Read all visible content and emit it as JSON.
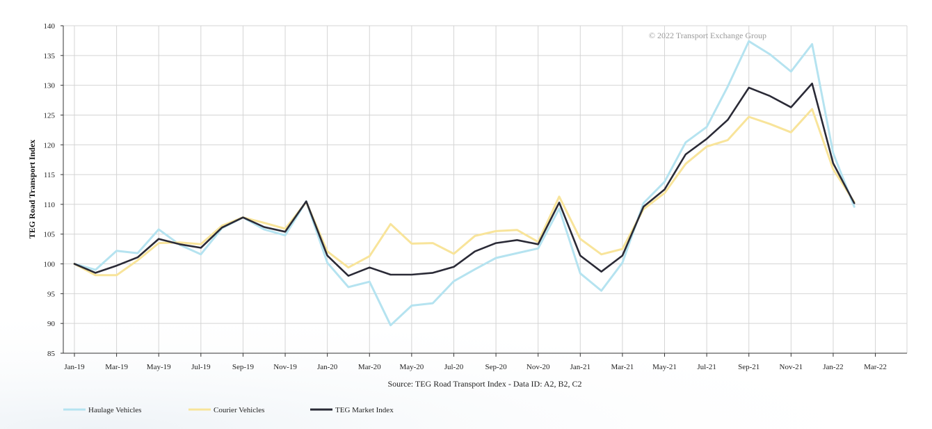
{
  "chart_data": {
    "type": "line",
    "ylabel": "TEG Road Transport Index",
    "source": "Source: TEG Road Transport Index - Data ID: A2, B2, C2",
    "watermark": "© 2022 Transport Exchange Group",
    "ylim": [
      85,
      140
    ],
    "yticks": [
      85,
      90,
      95,
      100,
      105,
      110,
      115,
      120,
      125,
      130,
      135,
      140
    ],
    "xticks": [
      "Jan-19",
      "Mar-19",
      "May-19",
      "Jul-19",
      "Sep-19",
      "Nov-19",
      "Jan-20",
      "Mar-20",
      "May-20",
      "Jul-20",
      "Sep-20",
      "Nov-20",
      "Jan-21",
      "Mar-21",
      "May-21",
      "Jul-21",
      "Sep-21",
      "Nov-21",
      "Jan-22",
      "Mar-22"
    ],
    "x": [
      "Jan-19",
      "Feb-19",
      "Mar-19",
      "Apr-19",
      "May-19",
      "Jun-19",
      "Jul-19",
      "Aug-19",
      "Sep-19",
      "Oct-19",
      "Nov-19",
      "Dec-19",
      "Jan-20",
      "Feb-20",
      "Mar-20",
      "Apr-20",
      "May-20",
      "Jun-20",
      "Jul-20",
      "Aug-20",
      "Sep-20",
      "Oct-20",
      "Nov-20",
      "Dec-20",
      "Jan-21",
      "Feb-21",
      "Mar-21",
      "Apr-21",
      "May-21",
      "Jun-21",
      "Jul-21",
      "Aug-21",
      "Sep-21",
      "Oct-21",
      "Nov-21",
      "Dec-21",
      "Jan-22",
      "Feb-22"
    ],
    "grid": true,
    "legend_position": "bottom-left",
    "series": [
      {
        "name": "Haulage Vehicles",
        "color": "#b5e3f0",
        "values": [
          100,
          99.0,
          102.2,
          101.8,
          105.8,
          103.2,
          101.6,
          106.0,
          107.8,
          105.8,
          104.8,
          110.5,
          100.2,
          96.1,
          97.0,
          89.7,
          93.0,
          93.4,
          97.1,
          99.1,
          101.0,
          101.8,
          102.6,
          109.3,
          98.4,
          95.5,
          100.2,
          110.2,
          113.8,
          120.4,
          123.0,
          129.8,
          137.4,
          135.2,
          132.3,
          136.9,
          118.6,
          109.6
        ]
      },
      {
        "name": "Courier Vehicles",
        "color": "#f8e49a",
        "values": [
          100,
          98.1,
          98.1,
          100.6,
          103.5,
          103.6,
          103.3,
          106.4,
          107.8,
          106.9,
          105.9,
          110.4,
          102.1,
          99.4,
          101.3,
          106.7,
          103.4,
          103.5,
          101.7,
          104.7,
          105.5,
          105.7,
          103.7,
          111.3,
          104.2,
          101.6,
          102.5,
          109.2,
          111.9,
          116.8,
          119.7,
          120.8,
          124.7,
          123.5,
          122.1,
          126.0,
          115.9,
          110.4
        ]
      },
      {
        "name": "TEG Market Index",
        "color": "#2a2a36",
        "values": [
          100,
          98.5,
          99.7,
          101.1,
          104.2,
          103.3,
          102.7,
          106.1,
          107.8,
          106.2,
          105.4,
          110.5,
          101.4,
          98.0,
          99.4,
          98.2,
          98.2,
          98.5,
          99.5,
          102.1,
          103.5,
          104.0,
          103.3,
          110.3,
          101.4,
          98.7,
          101.4,
          109.6,
          112.5,
          118.4,
          121.0,
          124.2,
          129.6,
          128.2,
          126.3,
          130.3,
          116.9,
          110.2
        ]
      }
    ]
  }
}
